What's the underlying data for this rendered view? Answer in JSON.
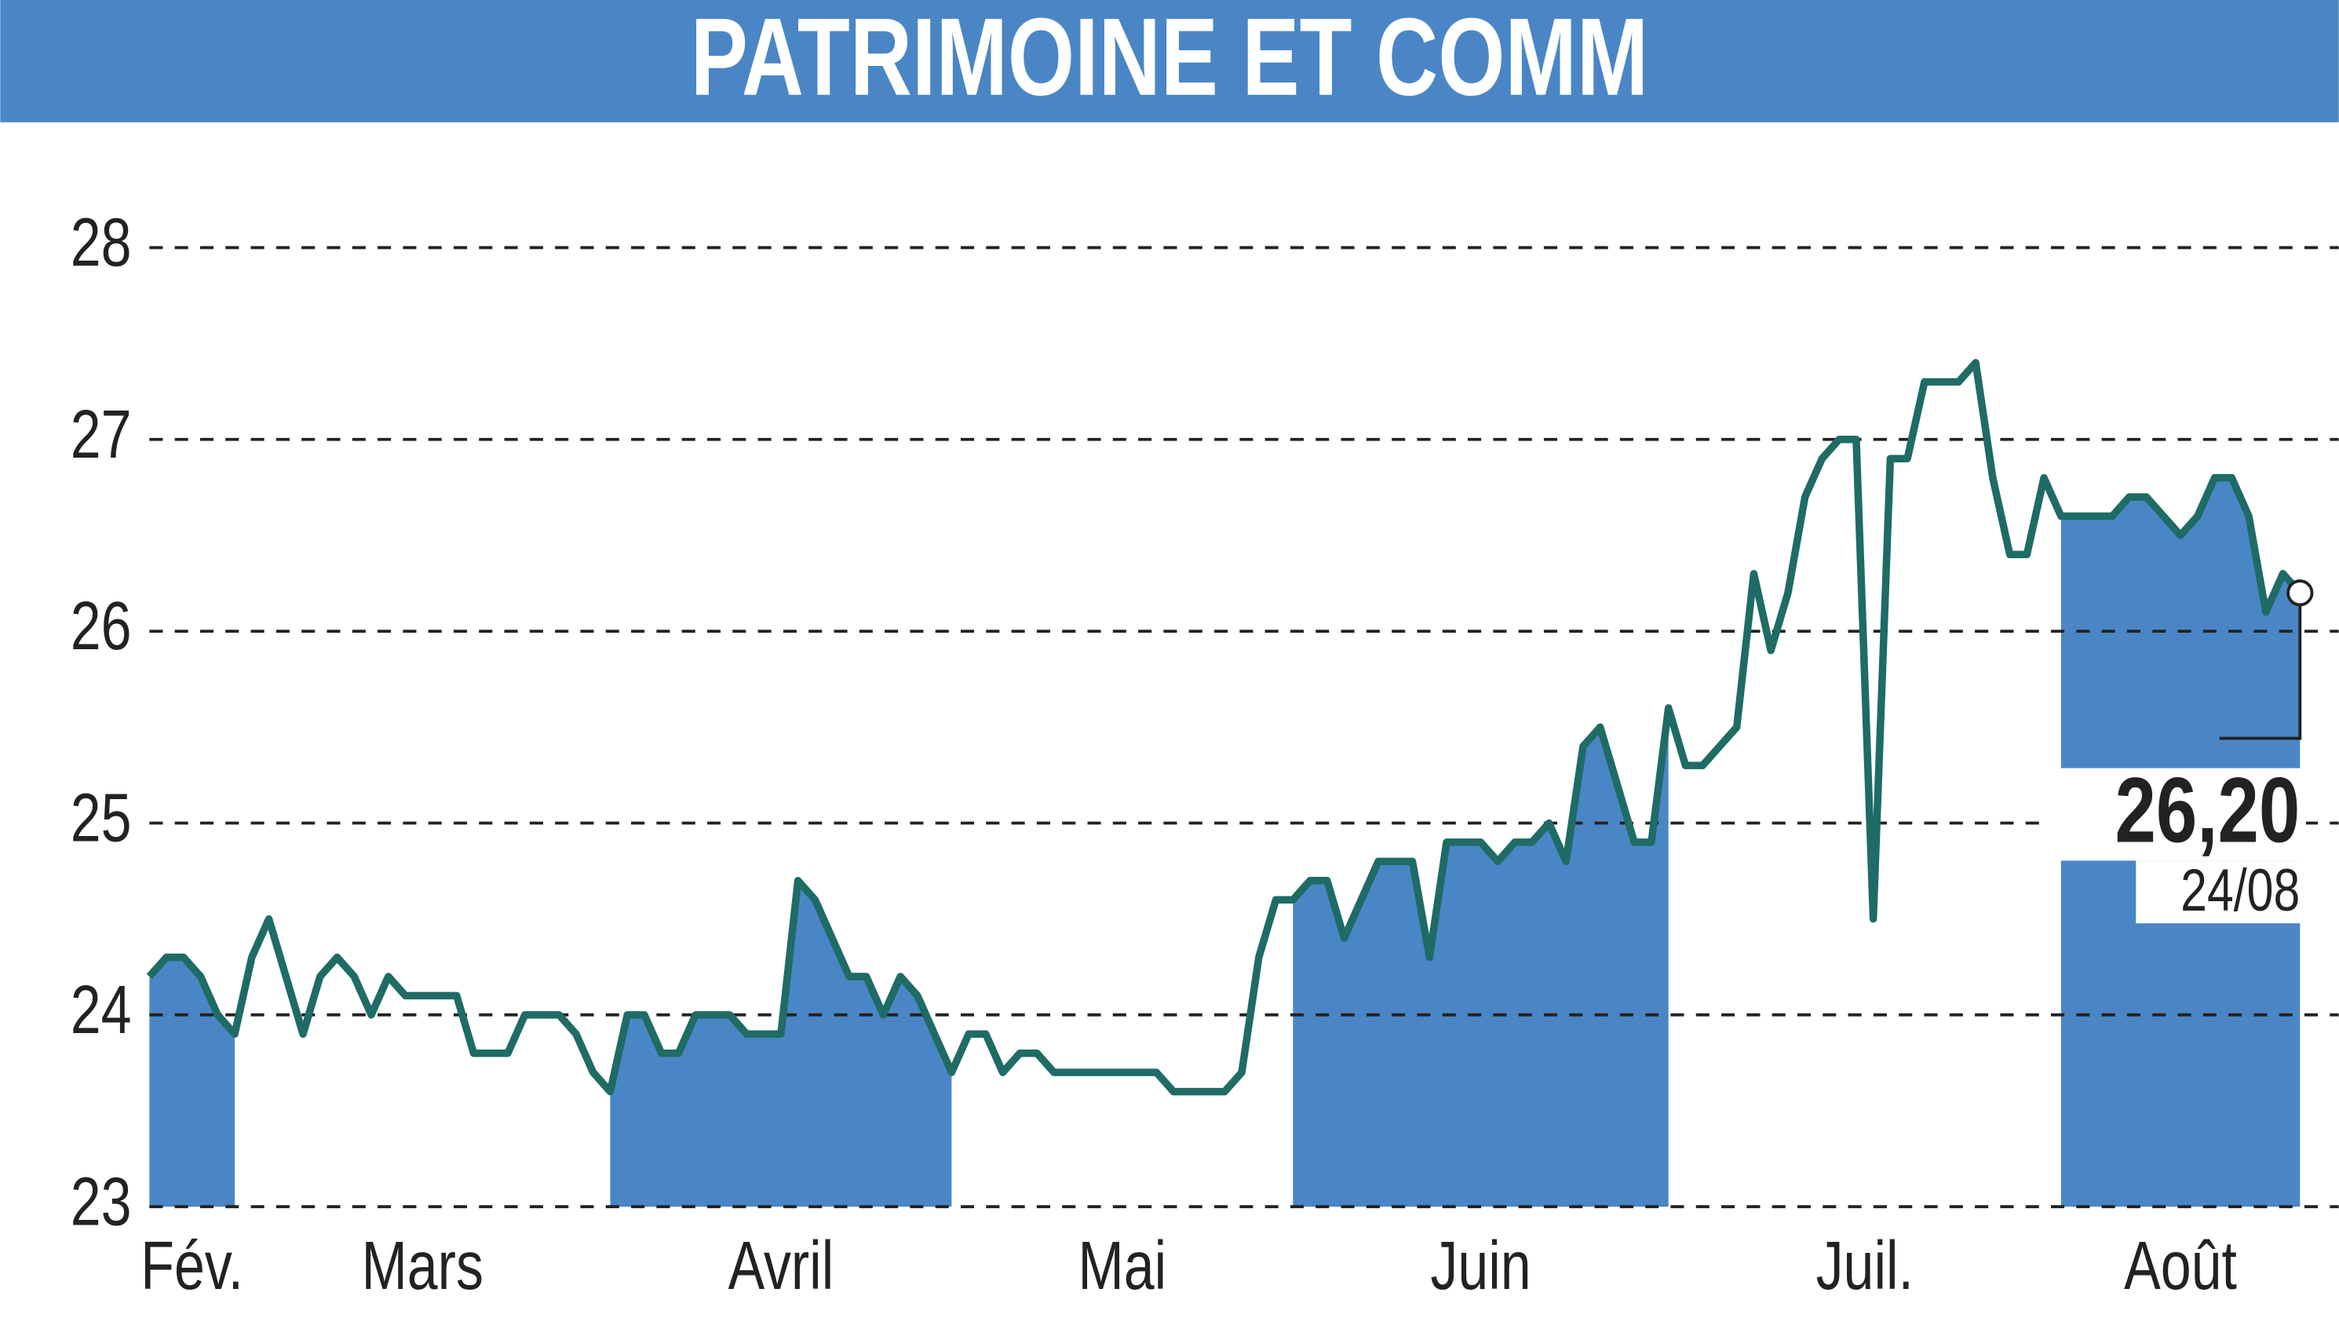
{
  "chart_data": {
    "type": "line",
    "title": "PATRIMOINE ET COMM",
    "categories": [
      "Fév.",
      null,
      null,
      null,
      null,
      "Mars",
      null,
      null,
      null,
      null,
      null,
      null,
      null,
      null,
      null,
      null,
      null,
      null,
      null,
      null,
      null,
      null,
      null,
      null,
      null,
      null,
      null,
      "Avril",
      null,
      null,
      null,
      null,
      null,
      null,
      null,
      null,
      null,
      null,
      null,
      null,
      null,
      null,
      null,
      null,
      null,
      null,
      null,
      "Mai",
      null,
      null,
      null,
      null,
      null,
      null,
      null,
      null,
      null,
      null,
      null,
      null,
      null,
      null,
      null,
      null,
      null,
      null,
      null,
      "Juin",
      null,
      null,
      null,
      null,
      null,
      null,
      null,
      null,
      null,
      null,
      null,
      null,
      null,
      null,
      null,
      null,
      null,
      null,
      null,
      null,
      null,
      "Juil.",
      null,
      null,
      null,
      null,
      null,
      null,
      null,
      null,
      null,
      null,
      null,
      null,
      null,
      null,
      null,
      null,
      null,
      null,
      null,
      null,
      null,
      null,
      "Août",
      null,
      null,
      null,
      null,
      null,
      null,
      null,
      null,
      null,
      null,
      null,
      null,
      null,
      null
    ],
    "values": [
      24.2,
      24.3,
      24.3,
      24.2,
      24.0,
      23.9,
      24.3,
      24.5,
      24.2,
      23.9,
      24.2,
      24.3,
      24.2,
      24.0,
      24.2,
      24.1,
      24.1,
      24.1,
      24.1,
      23.8,
      23.8,
      23.8,
      24.0,
      24.0,
      24.0,
      23.9,
      23.7,
      23.6,
      24.0,
      24.0,
      23.8,
      23.8,
      24.0,
      24.0,
      24.0,
      23.9,
      23.9,
      23.9,
      24.7,
      24.6,
      24.4,
      24.2,
      24.2,
      24.0,
      24.2,
      24.1,
      23.9,
      23.7,
      23.9,
      23.9,
      23.7,
      23.8,
      23.8,
      23.7,
      23.7,
      23.7,
      23.7,
      23.7,
      23.7,
      23.7,
      23.6,
      23.6,
      23.6,
      23.6,
      23.7,
      24.3,
      24.6,
      24.6,
      24.7,
      24.7,
      24.4,
      24.6,
      24.8,
      24.8,
      24.8,
      24.3,
      24.9,
      24.9,
      24.9,
      24.8,
      24.9,
      24.9,
      25.0,
      24.8,
      25.4,
      25.5,
      25.2,
      24.9,
      24.9,
      25.6,
      25.3,
      25.3,
      25.4,
      25.5,
      26.3,
      25.9,
      26.2,
      26.7,
      26.9,
      27.0,
      27.0,
      24.5,
      26.9,
      26.9,
      27.3,
      27.3,
      27.3,
      27.4,
      26.8,
      26.4,
      26.4,
      26.8,
      26.6,
      26.6,
      26.6,
      26.6,
      26.7,
      26.7,
      26.6,
      26.5,
      26.6,
      26.8,
      26.8,
      26.6,
      26.1,
      26.3,
      26.2
    ],
    "color": "#1f6b66",
    "shade_color": "#4a86c5",
    "ylim": [
      23,
      28
    ],
    "yticks": [
      23,
      24,
      25,
      26,
      27,
      28
    ],
    "grid": true,
    "last_value_label": "26,20",
    "last_date": "24/08"
  }
}
